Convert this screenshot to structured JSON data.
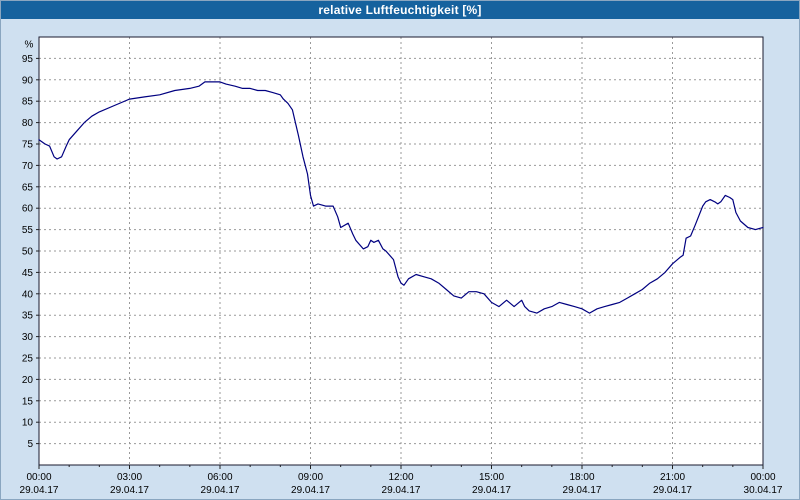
{
  "header": {
    "title": "relative Luftfeuchtigkeit [%]"
  },
  "colors": {
    "titlebar_bg": "#16629e",
    "titlebar_text": "#ffffff",
    "page_bg": "#cfe0f0",
    "plot_bg": "#ffffff",
    "plot_border": "#1a1a2e",
    "grid": "#9a9a9a",
    "line": "#000080",
    "tick_text": "#000000"
  },
  "chart_data": {
    "type": "line",
    "title": "relative Luftfeuchtigkeit [%]",
    "xlabel": "",
    "ylabel": "%",
    "ylim": [
      0,
      100
    ],
    "xlim_hours": [
      0,
      24
    ],
    "grid": true,
    "legend": "none",
    "y_ticks": [
      5,
      10,
      15,
      20,
      25,
      30,
      35,
      40,
      45,
      50,
      55,
      60,
      65,
      70,
      75,
      80,
      85,
      90,
      95
    ],
    "x_ticks": [
      {
        "hour": 0,
        "time": "00:00",
        "date": "29.04.17"
      },
      {
        "hour": 3,
        "time": "03:00",
        "date": "29.04.17"
      },
      {
        "hour": 6,
        "time": "06:00",
        "date": "29.04.17"
      },
      {
        "hour": 9,
        "time": "09:00",
        "date": "29.04.17"
      },
      {
        "hour": 12,
        "time": "12:00",
        "date": "29.04.17"
      },
      {
        "hour": 15,
        "time": "15:00",
        "date": "29.04.17"
      },
      {
        "hour": 18,
        "time": "18:00",
        "date": "29.04.17"
      },
      {
        "hour": 21,
        "time": "21:00",
        "date": "29.04.17"
      },
      {
        "hour": 24,
        "time": "00:00",
        "date": "30.04.17"
      }
    ],
    "series": [
      {
        "name": "relative Luftfeuchtigkeit",
        "unit": "%",
        "points": [
          [
            0.0,
            76
          ],
          [
            0.2,
            75
          ],
          [
            0.35,
            74.5
          ],
          [
            0.5,
            72
          ],
          [
            0.6,
            71.5
          ],
          [
            0.75,
            72
          ],
          [
            0.9,
            74.5
          ],
          [
            1.0,
            76
          ],
          [
            1.25,
            78
          ],
          [
            1.5,
            80
          ],
          [
            1.75,
            81.5
          ],
          [
            2.0,
            82.5
          ],
          [
            2.5,
            84
          ],
          [
            3.0,
            85.5
          ],
          [
            3.5,
            86
          ],
          [
            4.0,
            86.5
          ],
          [
            4.5,
            87.5
          ],
          [
            5.0,
            88
          ],
          [
            5.3,
            88.5
          ],
          [
            5.5,
            89.5
          ],
          [
            5.75,
            89.5
          ],
          [
            6.0,
            89.5
          ],
          [
            6.2,
            89
          ],
          [
            6.5,
            88.5
          ],
          [
            6.75,
            88
          ],
          [
            7.0,
            88
          ],
          [
            7.25,
            87.5
          ],
          [
            7.5,
            87.5
          ],
          [
            7.75,
            87
          ],
          [
            8.0,
            86.5
          ],
          [
            8.1,
            85.5
          ],
          [
            8.25,
            84.5
          ],
          [
            8.4,
            83
          ],
          [
            8.5,
            80
          ],
          [
            8.6,
            77
          ],
          [
            8.75,
            72
          ],
          [
            8.9,
            68
          ],
          [
            9.0,
            63
          ],
          [
            9.1,
            60.5
          ],
          [
            9.25,
            61
          ],
          [
            9.5,
            60.5
          ],
          [
            9.75,
            60.5
          ],
          [
            9.9,
            58
          ],
          [
            10.0,
            55.5
          ],
          [
            10.25,
            56.5
          ],
          [
            10.4,
            54
          ],
          [
            10.5,
            52.5
          ],
          [
            10.75,
            50.5
          ],
          [
            10.9,
            51
          ],
          [
            11.0,
            52.5
          ],
          [
            11.1,
            52
          ],
          [
            11.25,
            52.5
          ],
          [
            11.4,
            50.5
          ],
          [
            11.5,
            50
          ],
          [
            11.75,
            48
          ],
          [
            11.9,
            44
          ],
          [
            12.0,
            42.5
          ],
          [
            12.1,
            42
          ],
          [
            12.25,
            43.5
          ],
          [
            12.5,
            44.5
          ],
          [
            12.75,
            44
          ],
          [
            13.0,
            43.5
          ],
          [
            13.25,
            42.5
          ],
          [
            13.5,
            41
          ],
          [
            13.75,
            39.5
          ],
          [
            14.0,
            39
          ],
          [
            14.25,
            40.5
          ],
          [
            14.5,
            40.5
          ],
          [
            14.75,
            40
          ],
          [
            15.0,
            38
          ],
          [
            15.25,
            37
          ],
          [
            15.5,
            38.5
          ],
          [
            15.75,
            37
          ],
          [
            16.0,
            38.5
          ],
          [
            16.1,
            37
          ],
          [
            16.25,
            36
          ],
          [
            16.5,
            35.5
          ],
          [
            16.75,
            36.5
          ],
          [
            17.0,
            37
          ],
          [
            17.25,
            38
          ],
          [
            17.5,
            37.5
          ],
          [
            17.75,
            37
          ],
          [
            18.0,
            36.5
          ],
          [
            18.25,
            35.5
          ],
          [
            18.5,
            36.5
          ],
          [
            18.75,
            37
          ],
          [
            19.0,
            37.5
          ],
          [
            19.25,
            38
          ],
          [
            19.5,
            39
          ],
          [
            19.75,
            40
          ],
          [
            20.0,
            41
          ],
          [
            20.25,
            42.5
          ],
          [
            20.5,
            43.5
          ],
          [
            20.75,
            45
          ],
          [
            21.0,
            47
          ],
          [
            21.25,
            48.5
          ],
          [
            21.35,
            49
          ],
          [
            21.45,
            53
          ],
          [
            21.6,
            53.5
          ],
          [
            21.75,
            56
          ],
          [
            22.0,
            60.5
          ],
          [
            22.1,
            61.5
          ],
          [
            22.25,
            62
          ],
          [
            22.4,
            61.5
          ],
          [
            22.5,
            61
          ],
          [
            22.6,
            61.5
          ],
          [
            22.75,
            63
          ],
          [
            22.9,
            62.5
          ],
          [
            23.0,
            62
          ],
          [
            23.1,
            59
          ],
          [
            23.25,
            57
          ],
          [
            23.5,
            55.5
          ],
          [
            23.75,
            55
          ],
          [
            24.0,
            55.5
          ]
        ]
      }
    ]
  }
}
